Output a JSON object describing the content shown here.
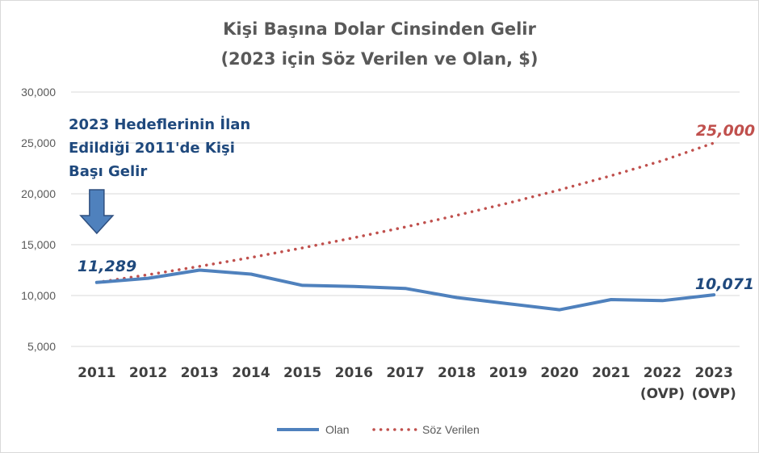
{
  "chart_data": {
    "type": "line",
    "title_lines": [
      "Kişi Başına Dolar Cinsinden Gelir",
      "(2023 için Söz Verilen ve Olan, $)"
    ],
    "categories": [
      "2011",
      "2012",
      "2013",
      "2014",
      "2015",
      "2016",
      "2017",
      "2018",
      "2019",
      "2020",
      "2021",
      "2022",
      "2023"
    ],
    "category_sublabels": [
      "",
      "",
      "",
      "",
      "",
      "",
      "",
      "",
      "",
      "",
      "",
      "(OVP)",
      "(OVP)"
    ],
    "series": [
      {
        "name": "Olan",
        "color": "#4f81bd",
        "style": "solid",
        "values": [
          11289,
          11700,
          12500,
          12100,
          11000,
          10900,
          10700,
          9800,
          9200,
          8600,
          9600,
          9500,
          10071
        ]
      },
      {
        "name": "Söz Verilen",
        "color": "#c0504d",
        "style": "dotted",
        "values": [
          11289,
          12050,
          12870,
          13740,
          14680,
          15680,
          16740,
          17880,
          19090,
          20390,
          21780,
          23260,
          25000
        ]
      }
    ],
    "y_ticks": [
      "5,000",
      "10,000",
      "15,000",
      "20,000",
      "25,000",
      "30,000"
    ],
    "ylim": [
      5000,
      30000
    ],
    "grid": true,
    "legend_position": "bottom",
    "data_labels": [
      {
        "series": 0,
        "index": 0,
        "text": "11,289",
        "color": "#1f497d"
      },
      {
        "series": 0,
        "index": 12,
        "text": "10,071",
        "color": "#1f497d"
      },
      {
        "series": 1,
        "index": 12,
        "text": "25,000",
        "color": "#c0504d"
      }
    ],
    "annotation": {
      "lines": [
        "2023 Hedeflerinin İlan",
        "Edildiği 2011'de Kişi",
        "Başı Gelir"
      ],
      "arrow_color": "#4f81bd",
      "arrow_border": "#2f4f7f"
    }
  }
}
